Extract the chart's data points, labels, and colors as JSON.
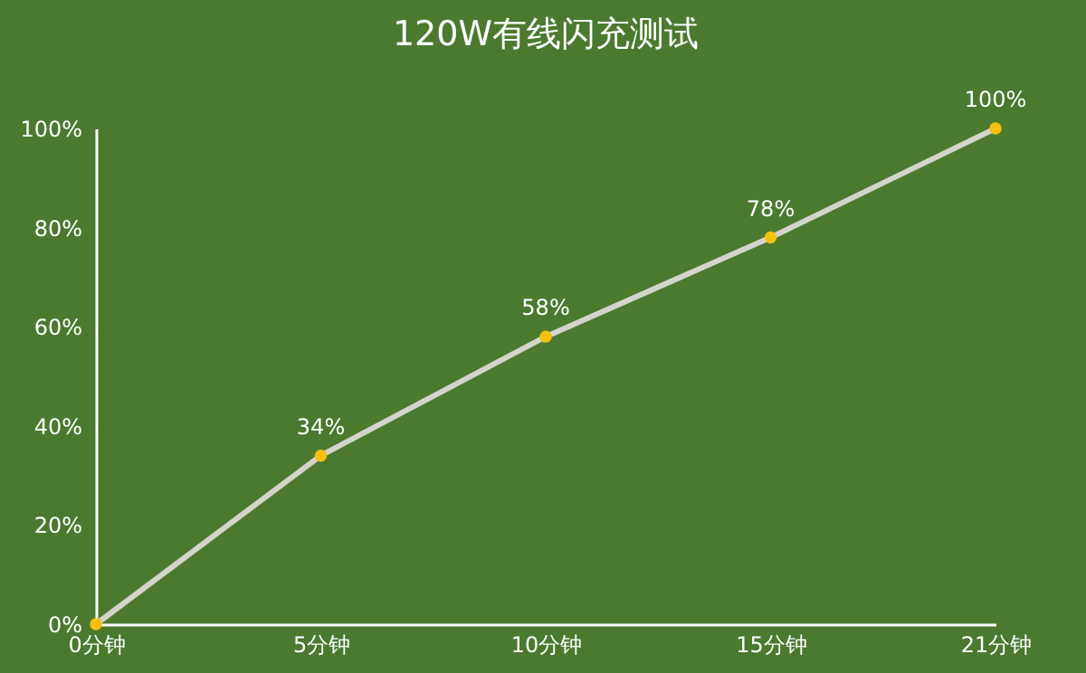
{
  "chart_data": {
    "type": "line",
    "title": "120W有线闪充测试",
    "categories": [
      "0分钟",
      "5分钟",
      "10分钟",
      "15分钟",
      "21分钟"
    ],
    "series": [
      {
        "color": "#d4d4cc",
        "values": [
          0,
          34,
          58,
          78,
          100
        ],
        "value_labels": [
          null,
          "34%",
          "58%",
          "78%",
          "100%"
        ]
      },
      {
        "type": "scatter",
        "color": "#f5c010",
        "values": [
          0,
          34,
          58,
          78,
          100
        ],
        "marker": "circle"
      }
    ],
    "ylim": [
      0,
      100
    ],
    "yticks": [
      {
        "value": 0,
        "label": "0%"
      },
      {
        "value": 20,
        "label": "20%"
      },
      {
        "value": 40,
        "label": "40%"
      },
      {
        "value": 60,
        "label": "60%"
      },
      {
        "value": 80,
        "label": "80%"
      },
      {
        "value": 100,
        "label": "100%"
      }
    ],
    "line_style": "solid"
  }
}
